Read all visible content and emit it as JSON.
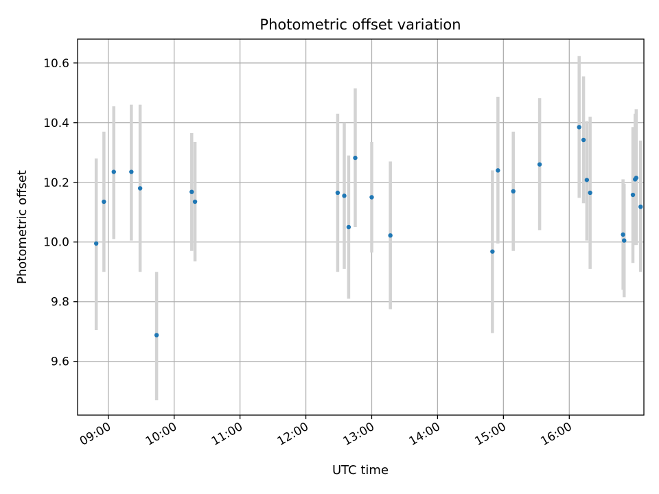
{
  "chart_data": {
    "type": "scatter",
    "title": "Photometric offset variation",
    "xlabel": "UTC time",
    "ylabel": "Photometric offset",
    "x_ticks": [
      "09:00",
      "10:00",
      "11:00",
      "12:00",
      "13:00",
      "14:00",
      "15:00",
      "16:00"
    ],
    "y_ticks": [
      "9.6",
      "9.8",
      "10.0",
      "10.2",
      "10.4",
      "10.6"
    ],
    "xlim": [
      "08:32",
      "17:08"
    ],
    "ylim": [
      9.42,
      10.68
    ],
    "grid": true,
    "point_color": "#1f77b4",
    "errorbar_color": "#d3d3d3",
    "series": [
      {
        "points": [
          {
            "x": "08:49",
            "y": 9.995,
            "lo": 9.705,
            "hi": 10.28
          },
          {
            "x": "08:56",
            "y": 10.135,
            "lo": 9.9,
            "hi": 10.37
          },
          {
            "x": "09:05",
            "y": 10.235,
            "lo": 10.01,
            "hi": 10.455
          },
          {
            "x": "09:21",
            "y": 10.235,
            "lo": 10.005,
            "hi": 10.46
          },
          {
            "x": "09:29",
            "y": 10.18,
            "lo": 9.9,
            "hi": 10.46
          },
          {
            "x": "09:44",
            "y": 9.688,
            "lo": 9.47,
            "hi": 9.9
          },
          {
            "x": "10:16",
            "y": 10.168,
            "lo": 9.97,
            "hi": 10.365
          },
          {
            "x": "10:19",
            "y": 10.135,
            "lo": 9.935,
            "hi": 10.335
          },
          {
            "x": "12:29",
            "y": 10.165,
            "lo": 9.9,
            "hi": 10.43
          },
          {
            "x": "12:35",
            "y": 10.155,
            "lo": 9.91,
            "hi": 10.4
          },
          {
            "x": "12:39",
            "y": 10.05,
            "lo": 9.81,
            "hi": 10.29
          },
          {
            "x": "12:45",
            "y": 10.282,
            "lo": 10.05,
            "hi": 10.515
          },
          {
            "x": "13:00",
            "y": 10.15,
            "lo": 9.965,
            "hi": 10.335
          },
          {
            "x": "13:17",
            "y": 10.022,
            "lo": 9.775,
            "hi": 10.27
          },
          {
            "x": "14:50",
            "y": 9.968,
            "lo": 9.695,
            "hi": 10.24
          },
          {
            "x": "14:55",
            "y": 10.24,
            "lo": 9.995,
            "hi": 10.487
          },
          {
            "x": "15:09",
            "y": 10.17,
            "lo": 9.97,
            "hi": 10.37
          },
          {
            "x": "15:33",
            "y": 10.26,
            "lo": 10.04,
            "hi": 10.482
          },
          {
            "x": "16:09",
            "y": 10.385,
            "lo": 10.148,
            "hi": 10.623
          },
          {
            "x": "16:13",
            "y": 10.342,
            "lo": 10.13,
            "hi": 10.555
          },
          {
            "x": "16:16",
            "y": 10.208,
            "lo": 10.005,
            "hi": 10.405
          },
          {
            "x": "16:19",
            "y": 10.165,
            "lo": 9.91,
            "hi": 10.42
          },
          {
            "x": "16:49",
            "y": 10.025,
            "lo": 9.84,
            "hi": 10.21
          },
          {
            "x": "16:50",
            "y": 10.005,
            "lo": 9.815,
            "hi": 10.195
          },
          {
            "x": "16:58",
            "y": 10.158,
            "lo": 9.93,
            "hi": 10.385
          },
          {
            "x": "17:00",
            "y": 10.21,
            "lo": 9.99,
            "hi": 10.43
          },
          {
            "x": "17:01",
            "y": 10.215,
            "lo": 9.99,
            "hi": 10.445
          },
          {
            "x": "17:05",
            "y": 10.118,
            "lo": 9.9,
            "hi": 10.34
          }
        ]
      }
    ]
  }
}
